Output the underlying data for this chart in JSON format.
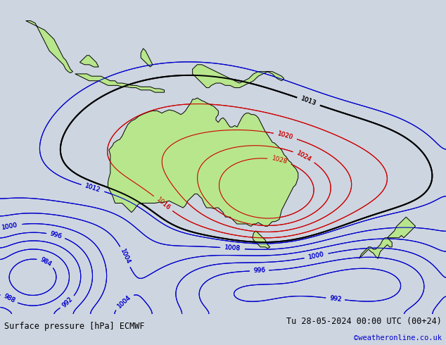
{
  "title_left": "Surface pressure [hPa] ECMWF",
  "title_right": "Tu 28-05-2024 00:00 UTC (00+24)",
  "watermark": "©weatheronline.co.uk",
  "background_color": "#cdd5e0",
  "land_color": "#b8e68c",
  "ocean_color": "#cdd5e0",
  "contour_low_color": "#0000cc",
  "contour_high_color": "#cc0000",
  "contour_border_color": "#000000",
  "contour_levels_low": [
    984,
    988,
    992,
    996,
    1000,
    1004,
    1008,
    1012
  ],
  "contour_levels_high": [
    1016,
    1020,
    1024,
    1028
  ],
  "contour_border_levels": [
    1013
  ],
  "lon_min": 90,
  "lon_max": 185,
  "lat_min": -58,
  "lat_max": 10,
  "figwidth": 6.34,
  "figheight": 4.9,
  "dpi": 100
}
